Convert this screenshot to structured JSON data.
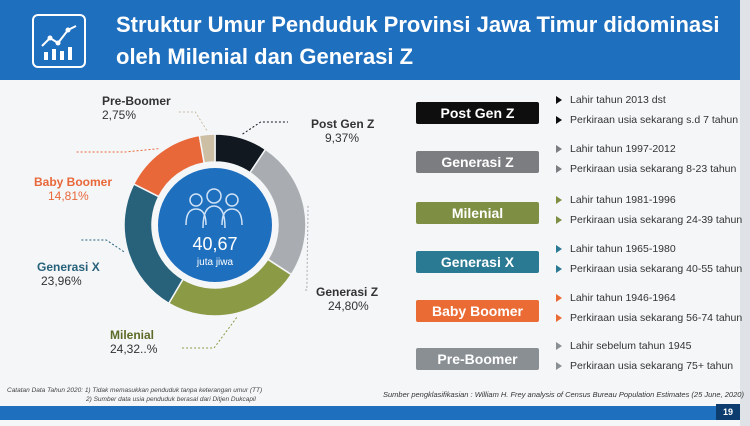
{
  "header": {
    "title_line1": "Struktur Umur Penduduk Provinsi Jawa Timur didominasi",
    "title_line2": "oleh Milenial dan Generasi Z"
  },
  "center": {
    "value": "40,67",
    "unit": "juta jiwa"
  },
  "chart_data": {
    "type": "pie",
    "categories": [
      "Post Gen Z",
      "Generasi Z",
      "Milenial",
      "Generasi X",
      "Baby Boomer",
      "Pre-Boomer"
    ],
    "value_labels": [
      "9,37%",
      "24,80%",
      "24,32..%",
      "23,96%",
      "14,81%",
      "2,75%"
    ],
    "values": [
      9.37,
      24.8,
      24.32,
      23.96,
      14.81,
      2.75
    ],
    "colors": [
      "#111820",
      "#a9adb1",
      "#8a9a45",
      "#27627a",
      "#e9683a",
      "#ccbfa3"
    ],
    "total": "40,67 juta jiwa"
  },
  "generations": [
    {
      "name": "Post Gen Z",
      "color": "#0e0e0e",
      "line1": "Lahir tahun 2013 dst",
      "line2": "Perkiraan usia sekarang s.d 7 tahun"
    },
    {
      "name": "Generasi Z",
      "color": "#7b7d80",
      "line1": "Lahir tahun 1997-2012",
      "line2": "Perkiraan usia sekarang 8-23 tahun"
    },
    {
      "name": "Milenial",
      "color": "#7e8f43",
      "line1": "Lahir tahun 1981-1996",
      "line2": "Perkiraan usia sekarang 24-39 tahun"
    },
    {
      "name": "Generasi X",
      "color": "#2b7a93",
      "line1": "Lahir tahun 1965-1980",
      "line2": "Perkiraan usia sekarang 40-55 tahun"
    },
    {
      "name": "Baby Boomer",
      "color": "#ea6b34",
      "line1": "Lahir tahun 1946-1964",
      "line2": "Perkiraan usia sekarang 56-74 tahun"
    },
    {
      "name": "Pre-Boomer",
      "color": "#8a8f94",
      "line1": "Lahir sebelum tahun 1945",
      "line2": "Perkiraan usia sekarang 75+ tahun"
    }
  ],
  "notes": {
    "line1": "Catatan Data Tahun 2020: 1) Tidak memasukkan penduduk tanpa keterangan umur (TT)",
    "line2": "2) Sumber data usia penduduk berasal dari Ditjen Dukcapil"
  },
  "source": "Sumber pengklasifikasian : William H. Frey analysis of Census Bureau Population Estimates (25 June, 2020)",
  "page_number": "19"
}
